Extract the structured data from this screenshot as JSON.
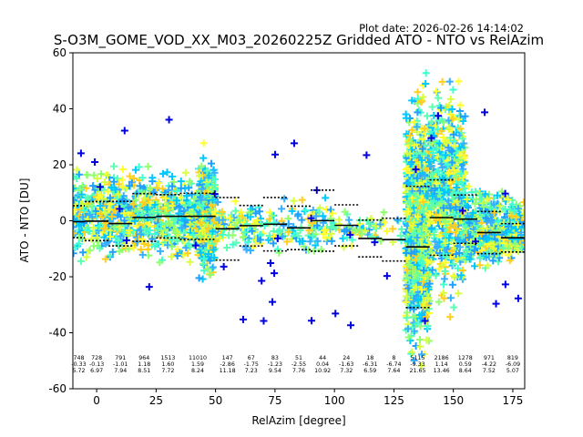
{
  "chart_data": {
    "type": "scatter",
    "title": "S-O3M_GOME_VOD_XX_M03_20260225Z Gridded ATO - NTO vs RelAzim",
    "plot_date": "Plot date: 2026-02-26 14:14:02",
    "xlabel": "RelAzim [degree]",
    "ylabel": "ATO - NTO [DU]",
    "xlim": [
      -10,
      180
    ],
    "ylim": [
      -60,
      60
    ],
    "xticks": [
      0,
      25,
      50,
      75,
      100,
      125,
      150,
      175
    ],
    "yticks": [
      -60,
      -40,
      -20,
      0,
      20,
      40,
      60
    ],
    "grid": false,
    "legend": "none",
    "colors": {
      "scatter_palette": [
        "#00c8ff",
        "#38b0ff",
        "#1fa0ff",
        "#5cffb0",
        "#40ffd0",
        "#90ff70",
        "#d8ff40",
        "#ffff30",
        "#ffd020",
        "#0000e0"
      ],
      "mean_line": "#000000",
      "std_line": "#000000"
    },
    "bins": [
      {
        "x0": -10,
        "x1": -5,
        "n": "748",
        "mean": "-0.33",
        "std": "5.72"
      },
      {
        "x0": -5,
        "x1": 5,
        "n": "728",
        "mean": "-0.13",
        "std": "6.97"
      },
      {
        "x0": 5,
        "x1": 15,
        "n": "791",
        "mean": "-1.01",
        "std": "7.94"
      },
      {
        "x0": 15,
        "x1": 25,
        "n": "964",
        "mean": "1.18",
        "std": "8.51"
      },
      {
        "x0": 25,
        "x1": 35,
        "n": "1513",
        "mean": "1.60",
        "std": "7.72"
      },
      {
        "x0": 35,
        "x1": 50,
        "n": "11010",
        "mean": "1.59",
        "std": "8.24"
      },
      {
        "x0": 50,
        "x1": 60,
        "n": "147",
        "mean": "-2.86",
        "std": "11.18"
      },
      {
        "x0": 60,
        "x1": 70,
        "n": "67",
        "mean": "-1.75",
        "std": "7.23"
      },
      {
        "x0": 70,
        "x1": 80,
        "n": "83",
        "mean": "-1.23",
        "std": "9.54"
      },
      {
        "x0": 80,
        "x1": 90,
        "n": "51",
        "mean": "-2.55",
        "std": "7.76"
      },
      {
        "x0": 90,
        "x1": 100,
        "n": "44",
        "mean": "0.04",
        "std": "10.92"
      },
      {
        "x0": 100,
        "x1": 110,
        "n": "24",
        "mean": "-1.63",
        "std": "7.32"
      },
      {
        "x0": 110,
        "x1": 120,
        "n": "18",
        "mean": "-6.31",
        "std": "6.59"
      },
      {
        "x0": 120,
        "x1": 130,
        "n": "8",
        "mean": "-6.74",
        "std": "7.64"
      },
      {
        "x0": 130,
        "x1": 140,
        "n": "5115",
        "mean": "-9.33",
        "std": "21.65"
      },
      {
        "x0": 140,
        "x1": 150,
        "n": "2186",
        "mean": "1.14",
        "std": "13.46"
      },
      {
        "x0": 150,
        "x1": 160,
        "n": "1278",
        "mean": "0.59",
        "std": "8.64"
      },
      {
        "x0": 160,
        "x1": 170,
        "n": "971",
        "mean": "-4.22",
        "std": "7.52"
      },
      {
        "x0": 170,
        "x1": 180,
        "n": "819",
        "mean": "-6.09",
        "std": "5.07"
      }
    ],
    "scatter_clusters": [
      {
        "x0": -10,
        "x1": 50,
        "y0": -18,
        "y1": 22,
        "density": 900
      },
      {
        "x0": 43,
        "x1": 50,
        "y0": -28,
        "y1": 30,
        "density": 300
      },
      {
        "x0": 50,
        "x1": 100,
        "y0": -14,
        "y1": 10,
        "density": 220
      },
      {
        "x0": 100,
        "x1": 130,
        "y0": -12,
        "y1": 6,
        "density": 60
      },
      {
        "x0": 130,
        "x1": 140,
        "y0": -60,
        "y1": 56,
        "density": 900
      },
      {
        "x0": 140,
        "x1": 155,
        "y0": -38,
        "y1": 58,
        "density": 600
      },
      {
        "x0": 155,
        "x1": 180,
        "y0": -20,
        "y1": 14,
        "density": 500
      }
    ]
  }
}
